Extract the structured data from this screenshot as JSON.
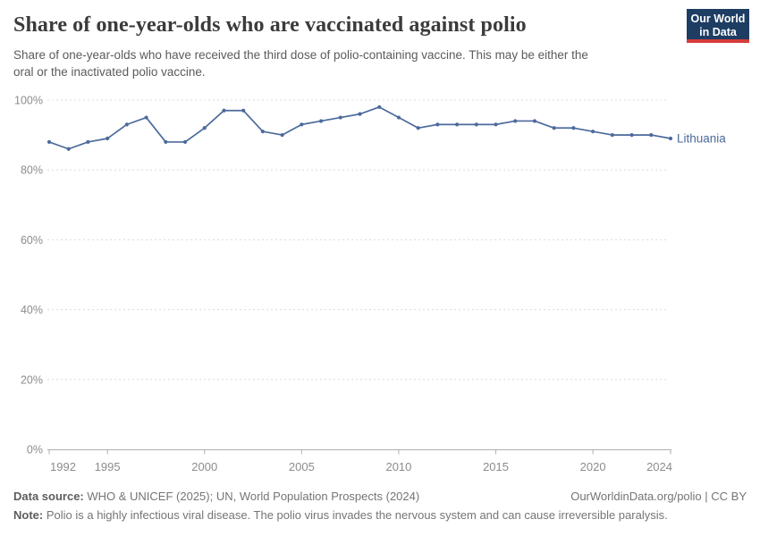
{
  "header": {
    "title": "Share of one-year-olds who are vaccinated against polio",
    "logo": {
      "line1": "Our World",
      "line2": "in Data",
      "bg_color": "#1d3d63",
      "accent_color": "#d73c3c"
    }
  },
  "subtitle": {
    "line1": "Share of one-year-olds who have received the third dose of polio-containing vaccine. This may be either the",
    "line2": "oral or the inactivated polio vaccine."
  },
  "chart_data": {
    "type": "line",
    "title": "Share of one-year-olds who are vaccinated against polio",
    "xlabel": "",
    "ylabel": "",
    "xlim": [
      1992,
      2024
    ],
    "ylim": [
      0,
      100
    ],
    "x_ticks": [
      1992,
      1995,
      2000,
      2005,
      2010,
      2015,
      2020,
      2024
    ],
    "y_ticks": [
      0,
      20,
      40,
      60,
      80,
      100
    ],
    "y_unit": "%",
    "grid": "dashed-horizontal",
    "legend": "end-of-line-label",
    "series": [
      {
        "name": "Lithuania",
        "color": "#4C6A9C",
        "x": [
          1992,
          1993,
          1994,
          1995,
          1996,
          1997,
          1998,
          1999,
          2000,
          2001,
          2002,
          2003,
          2004,
          2005,
          2006,
          2007,
          2008,
          2009,
          2010,
          2011,
          2012,
          2013,
          2014,
          2015,
          2016,
          2017,
          2018,
          2019,
          2020,
          2021,
          2022,
          2023,
          2024
        ],
        "values": [
          88,
          86,
          88,
          89,
          93,
          95,
          88,
          88,
          92,
          97,
          97,
          91,
          90,
          93,
          94,
          95,
          96,
          98,
          95,
          92,
          93,
          93,
          93,
          93,
          94,
          94,
          92,
          92,
          91,
          90,
          90,
          90,
          89
        ]
      }
    ]
  },
  "footer": {
    "source_label": "Data source:",
    "source_text": " WHO & UNICEF (2025); UN, World Population Prospects (2024)",
    "link_text": "OurWorldinData.org/polio | CC BY",
    "note_label": "Note:",
    "note_text": " Polio is a highly infectious viral disease. The polio virus invades the nervous system and can cause irreversible paralysis."
  }
}
